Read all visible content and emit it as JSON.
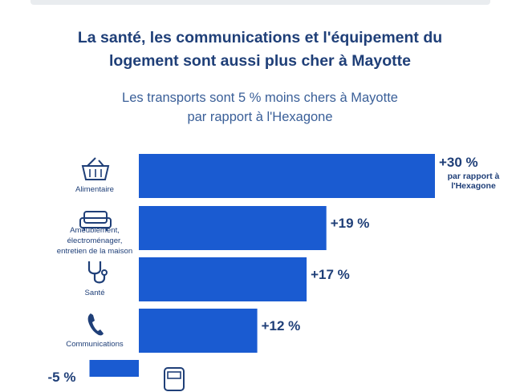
{
  "title_lines": [
    "La santé, les communications et l'équipement du",
    "logement sont aussi plus cher à Mayotte"
  ],
  "subtitle_lines": [
    "Les transports sont 5 % moins chers à Mayotte",
    "par rapport à l'Hexagone"
  ],
  "bar_note_lines": [
    "par rapport à",
    "l'Hexagone"
  ],
  "colors": {
    "bar": "#1a5bd1",
    "text": "#1f3f78",
    "subtitle": "#3a5f98"
  },
  "chart_data": {
    "type": "bar",
    "orientation": "horizontal",
    "title": "La santé, les communications et l'équipement du logement sont aussi plus cher à Mayotte",
    "subtitle": "Les transports sont 5 % moins chers à Mayotte par rapport à l'Hexagone",
    "categories": [
      {
        "label_lines": [
          "Alimentaire"
        ],
        "icon": "basket-icon",
        "value": 30,
        "value_label": "+30 %"
      },
      {
        "label_lines": [
          "Ameublement,",
          "électroménager,",
          "entretien de la maison"
        ],
        "icon": "sofa-icon",
        "value": 19,
        "value_label": "+19 %"
      },
      {
        "label_lines": [
          "Santé"
        ],
        "icon": "stethoscope-icon",
        "value": 17,
        "value_label": "+17 %"
      },
      {
        "label_lines": [
          "Communications"
        ],
        "icon": "phone-icon",
        "value": 12,
        "value_label": "+12 %"
      },
      {
        "label_lines": [],
        "icon": "car-icon",
        "value": -5,
        "value_label": "-5 %"
      }
    ],
    "grid": false,
    "legend": "none"
  }
}
